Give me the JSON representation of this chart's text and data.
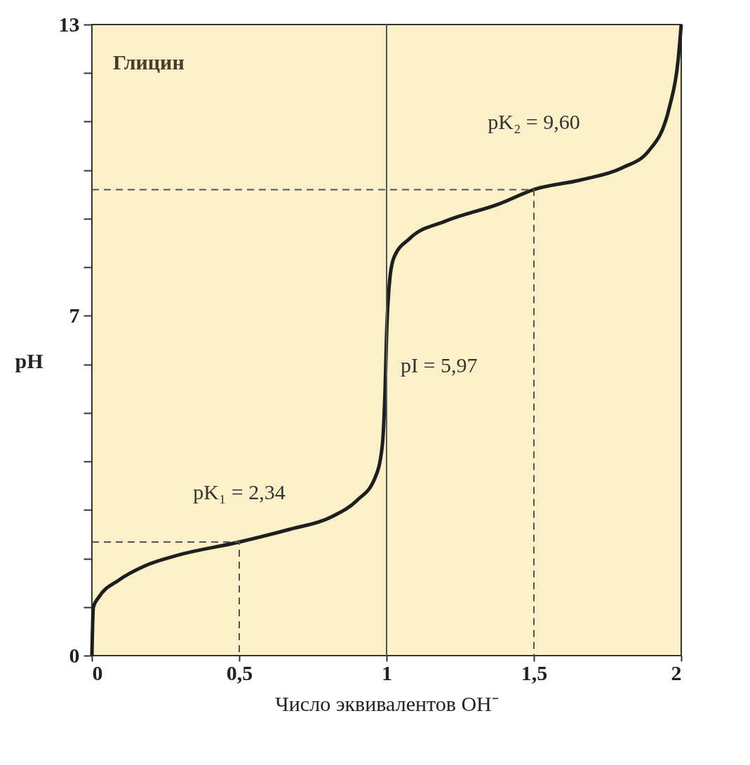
{
  "chart_data": {
    "type": "line",
    "xlabel": "Число эквивалентов OH⁻",
    "ylabel": "pH",
    "xlim": [
      0,
      2
    ],
    "ylim": [
      0,
      13
    ],
    "xticks": [
      0,
      {
        "value": 0.5,
        "label": "0,5"
      },
      1,
      {
        "value": 1.5,
        "label": "1,5"
      },
      2
    ],
    "yticks": [
      0,
      {
        "value": 1,
        "label": null
      },
      {
        "value": 2,
        "label": null
      },
      {
        "value": 3,
        "label": null
      },
      {
        "value": 4,
        "label": null
      },
      {
        "value": 5,
        "label": null
      },
      {
        "value": 6,
        "label": null
      },
      7,
      {
        "value": 8,
        "label": null
      },
      {
        "value": 9,
        "label": null
      },
      {
        "value": 10,
        "label": null
      },
      {
        "value": 11,
        "label": null
      },
      {
        "value": 12,
        "label": null
      },
      13
    ],
    "grid": false,
    "series": [
      {
        "color": "#1e1e1e",
        "x": [
          0,
          0.005,
          0.023,
          0.09,
          0.18,
          0.28,
          0.5,
          0.67,
          0.81,
          0.9,
          0.96,
          0.985,
          0.995,
          1.0,
          1.01,
          1.025,
          1.08,
          1.2,
          1.38,
          1.5,
          1.66,
          1.8,
          1.89,
          1.96,
          1.99,
          2.0
        ],
        "values": [
          0,
          1,
          1.2,
          1.55,
          1.85,
          2.05,
          2.34,
          2.6,
          2.85,
          3.2,
          3.65,
          4.3,
          5.5,
          6.6,
          7.7,
          8.2,
          8.6,
          8.95,
          9.3,
          9.6,
          9.8,
          10.05,
          10.4,
          11.3,
          12.3,
          13
        ]
      },
      {
        "color": "#555555",
        "line_style": "dashed",
        "x": [
          0,
          0.5,
          0.5
        ],
        "values": [
          2.34,
          2.34,
          0
        ]
      },
      {
        "color": "#555555",
        "line_style": "dashed",
        "x": [
          0,
          1.5,
          1.5
        ],
        "values": [
          9.6,
          9.6,
          0
        ]
      }
    ],
    "ref_lines": [
      {
        "axis": "x",
        "value": 1,
        "color": "#555555"
      }
    ],
    "annotations": [
      "Глицин",
      {
        "text": "pK₁ = 2,34",
        "x": 0.5,
        "y": 2.34
      },
      {
        "text": "pK₂ = 9,60",
        "x": 1.5,
        "y": 9.6
      },
      {
        "text": "pI = 5,97",
        "x": 1,
        "y": 5.97
      }
    ]
  }
}
